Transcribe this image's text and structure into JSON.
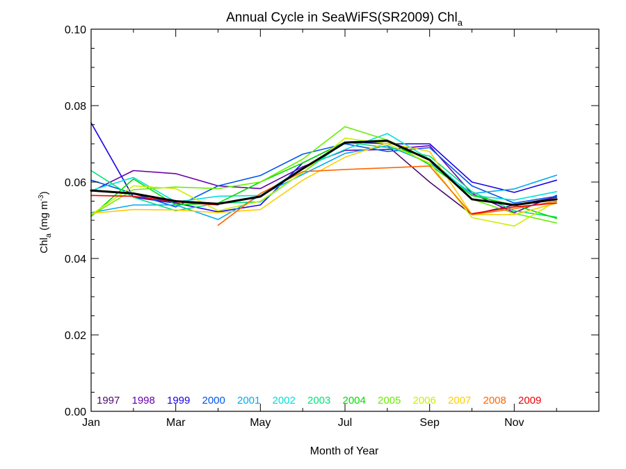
{
  "chart_data": {
    "type": "line",
    "title": "Annual Cycle in SeaWiFS(SR2009) Chl",
    "title_sub": "a",
    "xlabel": "Month of Year",
    "ylabel_main": "Chl",
    "ylabel_sub": "a",
    "ylabel_unit_prefix": " (mg m",
    "ylabel_unit_sup": "-3",
    "ylabel_unit_suffix": ")",
    "xlim": [
      1,
      13
    ],
    "ylim": [
      0,
      0.1
    ],
    "x_ticks": [
      {
        "value": 1,
        "label": "Jan"
      },
      {
        "value": 3,
        "label": "Mar"
      },
      {
        "value": 5,
        "label": "May"
      },
      {
        "value": 7,
        "label": "Jul"
      },
      {
        "value": 9,
        "label": "Sep"
      },
      {
        "value": 11,
        "label": "Nov"
      }
    ],
    "y_ticks": [
      {
        "value": 0.0,
        "label": "0.00"
      },
      {
        "value": 0.02,
        "label": "0.02"
      },
      {
        "value": 0.04,
        "label": "0.04"
      },
      {
        "value": 0.06,
        "label": "0.06"
      },
      {
        "value": 0.08,
        "label": "0.08"
      },
      {
        "value": 0.1,
        "label": "0.10"
      }
    ],
    "x": [
      1.0,
      2.0,
      3.0,
      4.0,
      5.0,
      6.0,
      7.0,
      8.0,
      9.0,
      10.0,
      11.0,
      12.0
    ],
    "grid": false,
    "legend_position": "bottom",
    "series": [
      {
        "name": "1997",
        "color": "#4b0c6b",
        "values": [
          null,
          null,
          null,
          null,
          null,
          null,
          null,
          0.0695,
          0.06,
          0.0515,
          0.054,
          0.056
        ]
      },
      {
        "name": "1998",
        "color": "#6600aa",
        "values": [
          0.0575,
          0.063,
          0.0622,
          0.059,
          0.0583,
          0.064,
          0.0683,
          0.0685,
          0.0695,
          0.057,
          0.052,
          0.0565
        ]
      },
      {
        "name": "1999",
        "color": "#1a00e6",
        "values": [
          0.0755,
          0.056,
          0.0545,
          0.0522,
          0.054,
          0.065,
          0.0705,
          0.07,
          0.07,
          0.06,
          0.0573,
          0.0605
        ]
      },
      {
        "name": "2000",
        "color": "#0055ee",
        "values": [
          0.0605,
          0.057,
          0.0535,
          0.059,
          0.0617,
          0.0673,
          0.07,
          0.068,
          0.069,
          0.059,
          0.0545,
          0.0563
        ]
      },
      {
        "name": "2001",
        "color": "#00aaee",
        "values": [
          0.052,
          0.054,
          0.054,
          0.0502,
          0.0565,
          0.062,
          0.0675,
          0.0695,
          0.065,
          0.057,
          0.0582,
          0.0618
        ]
      },
      {
        "name": "2002",
        "color": "#00e0d8",
        "values": [
          0.0578,
          0.0612,
          0.0548,
          0.0563,
          0.0565,
          0.0637,
          0.0685,
          0.0727,
          0.066,
          0.0565,
          0.0553,
          0.0575
        ]
      },
      {
        "name": "2003",
        "color": "#00e07a",
        "values": [
          0.063,
          0.056,
          0.0525,
          0.0545,
          0.0548,
          0.0625,
          0.0705,
          0.069,
          0.0668,
          0.0575,
          0.0525,
          0.0508
        ]
      },
      {
        "name": "2004",
        "color": "#00dd00",
        "values": [
          0.051,
          0.0608,
          0.054,
          0.0545,
          0.06,
          0.065,
          0.0705,
          0.071,
          0.0645,
          0.0565,
          0.054,
          0.0505
        ]
      },
      {
        "name": "2005",
        "color": "#66ee00",
        "values": [
          0.0513,
          0.058,
          0.0587,
          0.0583,
          0.06,
          0.066,
          0.0745,
          0.071,
          0.066,
          0.0555,
          0.0518,
          0.0493
        ]
      },
      {
        "name": "2006",
        "color": "#ccee00",
        "values": [
          0.0515,
          0.059,
          0.0583,
          0.0525,
          0.055,
          0.0625,
          0.0715,
          0.07,
          0.065,
          0.0507,
          0.0485,
          0.055
        ]
      },
      {
        "name": "2007",
        "color": "#ffcc00",
        "values": [
          0.0518,
          0.0528,
          0.0527,
          0.052,
          0.0528,
          0.0605,
          0.0665,
          0.0702,
          0.068,
          0.0515,
          0.0515,
          0.0545
        ]
      },
      {
        "name": "2008",
        "color": "#ff6600",
        "values": [
          null,
          null,
          null,
          0.0487,
          0.057,
          0.0627,
          0.0633,
          0.0637,
          0.0642,
          0.0515,
          0.053,
          0.055
        ]
      },
      {
        "name": "2009",
        "color": "#ee0000",
        "values": [
          0.0565,
          0.0563,
          0.0548,
          0.054,
          null,
          null,
          null,
          null,
          null,
          0.0517,
          0.0535,
          0.0545
        ]
      },
      {
        "name": "",
        "color": "#000000",
        "values": [
          0.0578,
          0.057,
          0.055,
          0.0543,
          0.0562,
          0.0635,
          0.0703,
          0.0708,
          0.0658,
          0.0555,
          0.054,
          0.0555
        ]
      }
    ]
  }
}
